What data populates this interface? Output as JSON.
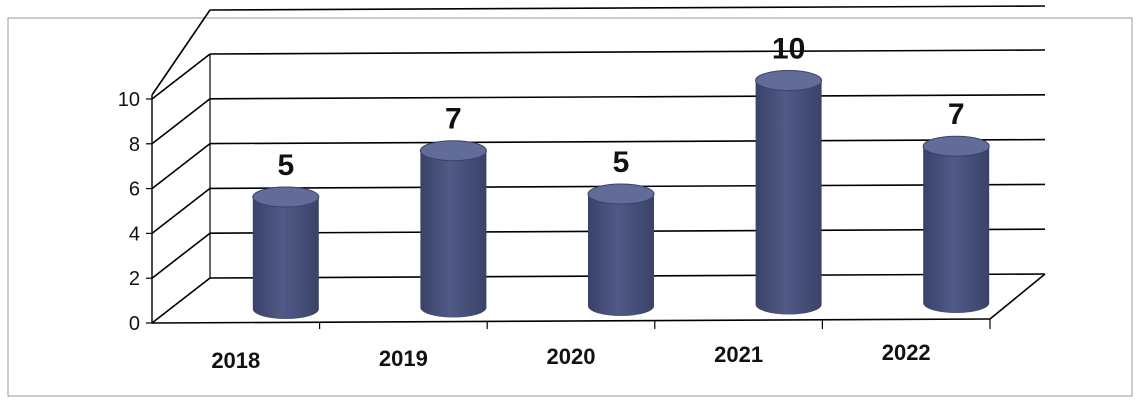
{
  "chart_data": {
    "type": "bar",
    "style": "3d-cylinder",
    "categories": [
      "2018",
      "2019",
      "2020",
      "2021",
      "2022"
    ],
    "series": [
      {
        "values": [
          5,
          7,
          5,
          10,
          7
        ]
      }
    ],
    "data_labels": [
      "5",
      "7",
      "5",
      "10",
      "7"
    ],
    "y_ticks": [
      "0",
      "2",
      "4",
      "6",
      "8",
      "10"
    ],
    "ylim": [
      0,
      10
    ],
    "grid": true,
    "legend": "none",
    "colors": {
      "bar": "#505a86",
      "bar_top": "#626c98",
      "bar_dark": "#3a4268",
      "grid": "#000000"
    }
  }
}
